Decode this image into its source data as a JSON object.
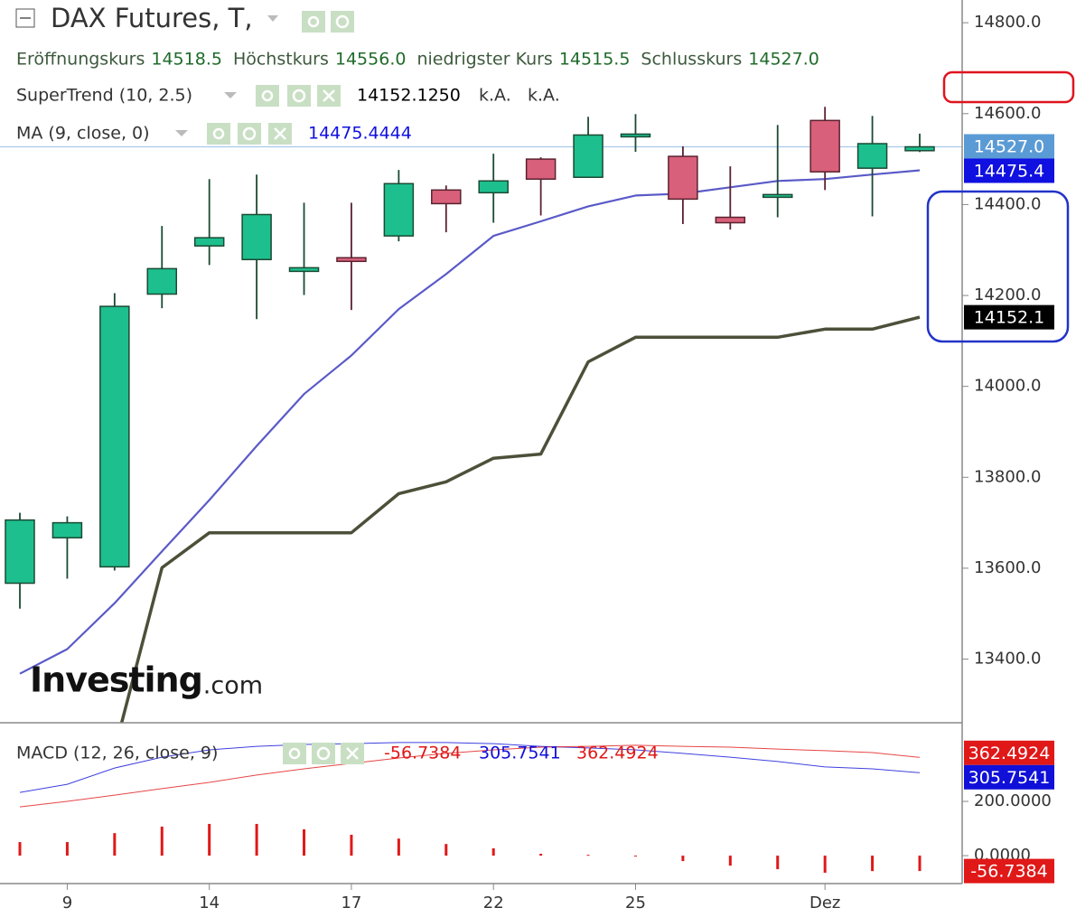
{
  "chart_data": {
    "type": "candlestick",
    "title": "DAX Futures, T,",
    "ohlc_labels": [
      {
        "name": "Eröffnungskurs",
        "value": "14518.5"
      },
      {
        "name": "Höchstkurs",
        "value": "14556.0"
      },
      {
        "name": "niedrigster Kurs",
        "value": "14515.5"
      },
      {
        "name": "Schlusskurs",
        "value": "14527.0"
      }
    ],
    "categories": [
      null,
      "9",
      null,
      null,
      "14",
      null,
      null,
      "17",
      null,
      null,
      "22",
      null,
      null,
      "25",
      null,
      null,
      null,
      "Dez",
      null,
      null
    ],
    "open": [
      13567,
      13667,
      13603,
      14203,
      14309,
      14279,
      14253,
      14283,
      14331,
      14432,
      14426,
      14500,
      14460,
      14549,
      14506,
      14372,
      14416,
      14585,
      14480,
      14518.5
    ],
    "high": [
      13722,
      13714,
      14205,
      14353,
      14456,
      14466,
      14404,
      14404,
      14476,
      14442,
      14512,
      14504,
      14593,
      14599,
      14528,
      14484,
      14575,
      14615,
      14595,
      14556
    ],
    "low": [
      13511,
      13577,
      13595,
      14172,
      14267,
      14148,
      14201,
      14168,
      14319,
      14339,
      14360,
      14376,
      14460,
      14516,
      14357,
      14345,
      14372,
      14432,
      14374,
      14515.5
    ],
    "close": [
      13706,
      13700,
      14176,
      14259,
      14327,
      14378,
      14261,
      14275,
      14446,
      14402,
      14452,
      14456,
      14553,
      14555,
      14412,
      14360,
      14422,
      14472,
      14534,
      14527
    ],
    "up_color": "#1dbf8e",
    "down_color": "#d9607a",
    "ylim": [
      13260,
      14850
    ],
    "yticks": [
      {
        "value": 13400,
        "label": "13400.0"
      },
      {
        "value": 13600,
        "label": "13600.0"
      },
      {
        "value": 13800,
        "label": "13800.0"
      },
      {
        "value": 14000,
        "label": "14000.0"
      },
      {
        "value": 14200,
        "label": "14200.0"
      },
      {
        "value": 14400,
        "label": "14400.0"
      },
      {
        "value": 14600,
        "label": "14600.0"
      },
      {
        "value": 14800,
        "label": "14800.0"
      }
    ],
    "last_tag": "14527.0",
    "last_tag_color": "#5b9bd5",
    "overlays": [
      {
        "name": "SuperTrend (10, 2.5)",
        "value_label": "14152.1250",
        "extra": [
          "k.A.",
          "k.A."
        ],
        "color": "#4d5039",
        "values": [
          null,
          null,
          13200,
          13601,
          13678,
          13678,
          13678,
          13678,
          13764,
          13790,
          13842,
          13851,
          14054,
          14108,
          14108,
          14108,
          14108,
          14126,
          14126,
          14152.125
        ],
        "tag": "14152.1",
        "tag_color": "#000000"
      },
      {
        "name": "MA (9, close, 0)",
        "value_label": "14475.4444",
        "color": "#5a5ac8",
        "values": [
          13368,
          13422,
          13523,
          13637,
          13750,
          13869,
          13983,
          14068,
          14170,
          14247,
          14331,
          14363,
          14396,
          14420,
          14424,
          14438,
          14452,
          14456,
          14466,
          14475.4444
        ],
        "tag": "14475.4",
        "tag_color": "#1010e0"
      }
    ],
    "watermark": "Investing",
    "watermark_suffix": ".com",
    "macd": {
      "name": "MACD (12, 26, close, 9)",
      "ylim": [
        -103,
        490
      ],
      "yticks": [
        {
          "value": 0,
          "label": "0.0000"
        },
        {
          "value": 200,
          "label": "200.0000"
        }
      ],
      "histogram": {
        "values": [
          50,
          50,
          83,
          107,
          117,
          117,
          97,
          77,
          63,
          43,
          27,
          7,
          3,
          -3,
          -20,
          -37,
          -50,
          -63,
          -57,
          -56.7384
        ],
        "value_label": "-56.7384",
        "color": "#e01818"
      },
      "macd": {
        "values": [
          233,
          263,
          323,
          363,
          390,
          403,
          410,
          413,
          417,
          417,
          413,
          403,
          397,
          390,
          377,
          363,
          347,
          327,
          320,
          305.7541
        ],
        "value_label": "305.7541",
        "color": "#1010d8"
      },
      "signal": {
        "values": [
          180,
          200,
          223,
          247,
          270,
          297,
          320,
          340,
          360,
          377,
          390,
          400,
          403,
          407,
          403,
          400,
          393,
          387,
          380,
          362.4924
        ],
        "value_label": "362.4924",
        "color": "#e01818"
      }
    }
  }
}
